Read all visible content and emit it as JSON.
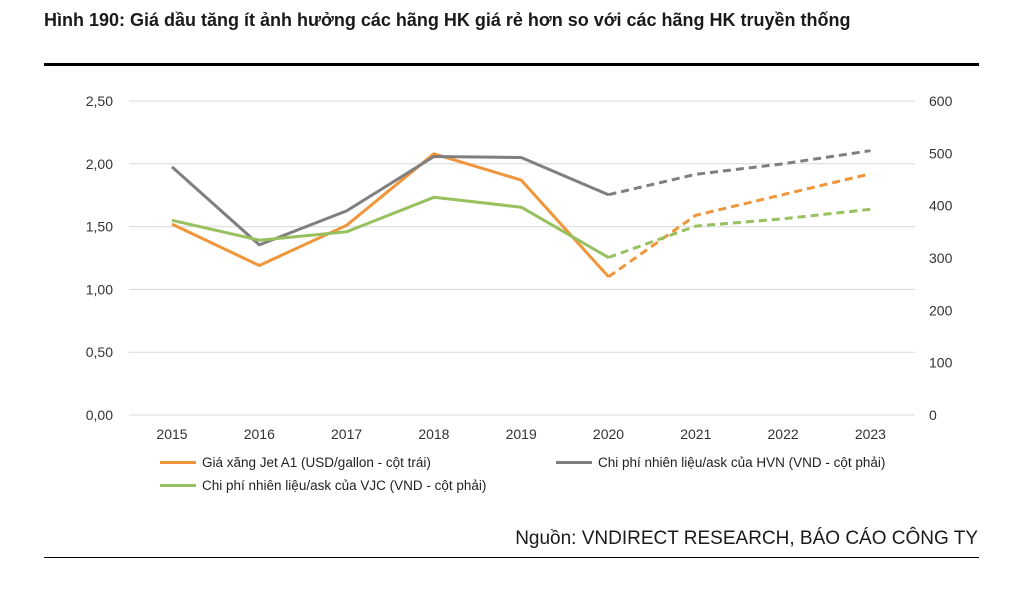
{
  "figure": {
    "title": "Hình 190: Giá dầu tăng ít ảnh hưởng các hãng HK giá rẻ hơn so với các hãng HK truyền thống",
    "source": "Nguồn: VNDIRECT RESEARCH, BÁO CÁO CÔNG TY"
  },
  "chart_data": {
    "type": "line",
    "categories": [
      "2015",
      "2016",
      "2017",
      "2018",
      "2019",
      "2020",
      "2021",
      "2022",
      "2023"
    ],
    "y_left": {
      "ticks": [
        "0,00",
        "0,50",
        "1,00",
        "1,50",
        "2,00",
        "2,50"
      ],
      "range": [
        0,
        2.5
      ]
    },
    "y_right": {
      "ticks": [
        "0",
        "100",
        "200",
        "300",
        "400",
        "500",
        "600"
      ],
      "range": [
        0,
        600
      ]
    },
    "grid": true,
    "forecast_from": "2020",
    "legend_position": "bottom",
    "series": [
      {
        "name": "Giá xăng Jet A1 (USD/gallon  - cột trái)",
        "axis": "left",
        "color": "#F0953A",
        "values": [
          1.52,
          1.19,
          1.51,
          2.08,
          1.87,
          1.1,
          1.59,
          null,
          1.92
        ]
      },
      {
        "name": "Chi phí nhiên liệu/ask của HVN (VND - cột phải)",
        "axis": "right",
        "color": "#7F7F7F",
        "values": [
          474,
          325,
          390,
          494,
          492,
          421,
          460,
          480,
          505
        ]
      },
      {
        "name": "Chi phí nhiên liệu/ask của VJC (VND - cột phải)",
        "axis": "right",
        "color": "#97C15E",
        "values": [
          372,
          334,
          350,
          416,
          397,
          301,
          361,
          375,
          393
        ]
      }
    ]
  }
}
